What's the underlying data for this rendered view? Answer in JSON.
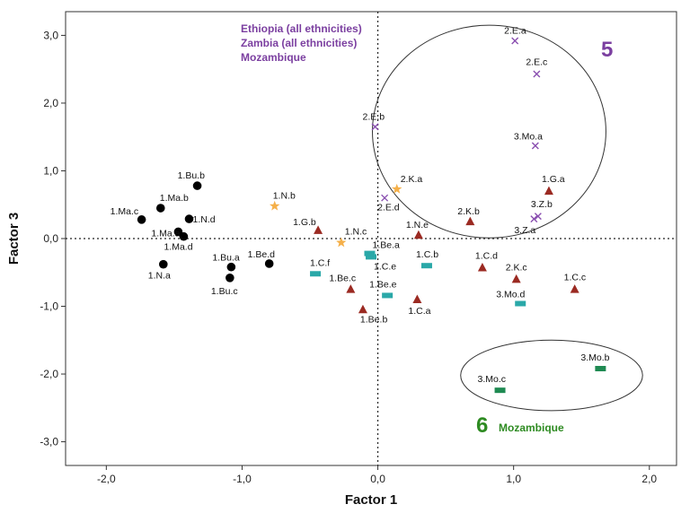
{
  "chart_data": {
    "type": "scatter",
    "xlabel": "Factor 1",
    "ylabel": "Factor 3",
    "xlim": [
      -2.3,
      2.2
    ],
    "ylim": [
      -3.35,
      3.35
    ],
    "x_ticks": [
      "-2,0",
      "-1,0",
      "0,0",
      "1,0",
      "2,0"
    ],
    "x_tick_values": [
      -2,
      -1,
      0,
      1,
      2
    ],
    "y_ticks": [
      "3,0",
      "2,0",
      "1,0",
      "0,0",
      "-1,0",
      "-2,0",
      "-3,0"
    ],
    "y_tick_values": [
      3,
      2,
      1,
      0,
      -1,
      -2,
      -3
    ],
    "reference_lines": {
      "x": 0,
      "y": 0,
      "style": "dotted"
    },
    "series": [
      {
        "marker": "circle",
        "color": "#000000",
        "points": [
          {
            "label": "1.Bu.b",
            "x": -1.33,
            "y": 0.78
          },
          {
            "label": "1.Ma.b",
            "x": -1.6,
            "y": 0.45
          },
          {
            "label": "1.Ma.c",
            "x": -1.74,
            "y": 0.28
          },
          {
            "label": "1.N.d",
            "x": -1.39,
            "y": 0.29
          },
          {
            "label": "1.Ma.a",
            "x": -1.47,
            "y": 0.1
          },
          {
            "label": "1.Ma.d",
            "x": -1.43,
            "y": 0.03
          },
          {
            "label": "1.N.a",
            "x": -1.58,
            "y": -0.38
          },
          {
            "label": "1.Bu.a",
            "x": -1.08,
            "y": -0.42
          },
          {
            "label": "1.Bu.c",
            "x": -1.09,
            "y": -0.58
          },
          {
            "label": "1.Be.d",
            "x": -0.8,
            "y": -0.37
          }
        ]
      },
      {
        "marker": "star",
        "color": "#f5b04a",
        "points": [
          {
            "label": "1.N.b",
            "x": -0.76,
            "y": 0.48
          },
          {
            "label": "1.N.c",
            "x": -0.27,
            "y": -0.06
          },
          {
            "label": "2.K.a",
            "x": 0.14,
            "y": 0.73
          }
        ]
      },
      {
        "marker": "x",
        "color": "#8a4fb0",
        "points": [
          {
            "label": "2.E.a",
            "x": 1.01,
            "y": 2.92
          },
          {
            "label": "2.E.c",
            "x": 1.17,
            "y": 2.43
          },
          {
            "label": "2.E.b",
            "x": -0.02,
            "y": 1.65
          },
          {
            "label": "3.Mo.a",
            "x": 1.16,
            "y": 1.37
          },
          {
            "label": "2.E.d",
            "x": 0.05,
            "y": 0.6
          },
          {
            "label": "3.Z.b",
            "x": 1.18,
            "y": 0.33
          },
          {
            "label": "3.Z.a",
            "x": 1.15,
            "y": 0.29
          }
        ]
      },
      {
        "marker": "triangle",
        "color": "#9b2a22",
        "points": [
          {
            "label": "1.G.a",
            "x": 1.26,
            "y": 0.7
          },
          {
            "label": "2.K.b",
            "x": 0.68,
            "y": 0.25
          },
          {
            "label": "1.G.b",
            "x": -0.44,
            "y": 0.12
          },
          {
            "label": "1.N.e",
            "x": 0.3,
            "y": 0.05
          },
          {
            "label": "1.C.d",
            "x": 0.77,
            "y": -0.43
          },
          {
            "label": "2.K.c",
            "x": 1.02,
            "y": -0.6
          },
          {
            "label": "1.C.c",
            "x": 1.45,
            "y": -0.75
          },
          {
            "label": "1.Be.c",
            "x": -0.2,
            "y": -0.75
          },
          {
            "label": "1.Be.b",
            "x": -0.11,
            "y": -1.05
          },
          {
            "label": "1.C.a",
            "x": 0.29,
            "y": -0.9
          }
        ]
      },
      {
        "marker": "square",
        "color": "#2aa8a8",
        "points": [
          {
            "label": "1.Be.a",
            "x": -0.06,
            "y": -0.22
          },
          {
            "label": "1.C.e",
            "x": -0.05,
            "y": -0.27
          },
          {
            "label": "1.C.f",
            "x": -0.46,
            "y": -0.52
          },
          {
            "label": "1.C.b",
            "x": 0.36,
            "y": -0.4
          },
          {
            "label": "1.Be.e",
            "x": 0.07,
            "y": -0.84
          },
          {
            "label": "3.Mo.d",
            "x": 1.05,
            "y": -0.96
          }
        ]
      },
      {
        "marker": "square",
        "color": "#1f8a52",
        "points": [
          {
            "label": "3.Mo.b",
            "x": 1.64,
            "y": -1.92
          },
          {
            "label": "3.Mo.c",
            "x": 0.9,
            "y": -2.24
          }
        ]
      }
    ],
    "annotations": {
      "cluster5_countries": [
        "Ethiopia (all ethnicities)",
        "Zambia  (all ethnicities)",
        "Mozambique"
      ],
      "cluster5_number": "5",
      "cluster6_number": "6",
      "cluster6_country": "Mozambique",
      "accent_purple": "#7b3fa0",
      "accent_green": "#2e8b22"
    },
    "grid": false
  }
}
